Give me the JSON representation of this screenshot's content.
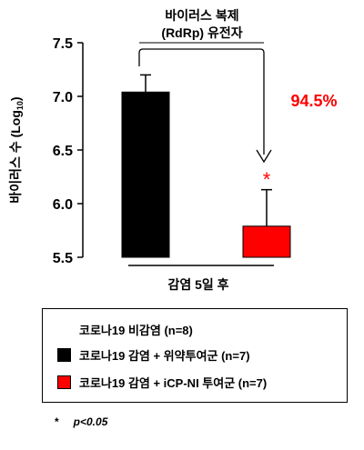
{
  "chart_data": {
    "type": "bar",
    "annotation_title_line1": "바이러스 복제",
    "annotation_title_line2": "(RdRp) 유전자",
    "ylabel": "바이러스 수 (Log",
    "ylabel_sub": "10",
    "ylabel_close": ")",
    "xlabel": "감염 5일 후",
    "ylim": [
      5.5,
      7.5
    ],
    "yticks": [
      "5.5",
      "6.0",
      "6.5",
      "7.0",
      "7.5"
    ],
    "series": [
      {
        "name": "코로나19 감염 + 위약투여군 (n=7)",
        "value": 7.04,
        "error": 0.16,
        "color": "#000000"
      },
      {
        "name": "코로나19 감염 + iCP-NI 투여군 (n=7)",
        "value": 5.79,
        "error": 0.34,
        "color": "#ff0000"
      }
    ],
    "reduction_label": "94.5%",
    "significance_marker": "*",
    "accent_color": "#ff0000"
  },
  "legend": {
    "items": [
      {
        "label": "코로나19 비감염 (n=8)",
        "color": "none"
      },
      {
        "label": "코로나19 감염 + 위약투여군 (n=7)",
        "color": "#000000"
      },
      {
        "label": "코로나19 감염 + iCP-NI 투여군 (n=7)",
        "color": "#ff0000"
      }
    ]
  },
  "footnote": {
    "symbol": "*",
    "text": "p<0.05"
  }
}
